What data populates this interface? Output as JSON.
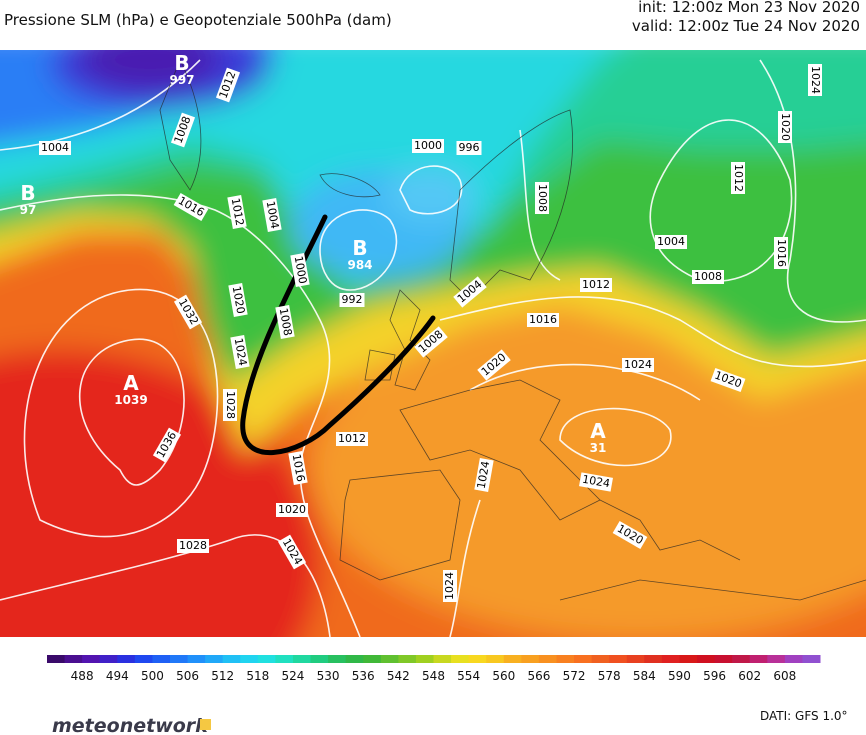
{
  "header": {
    "title": "Pressione SLM (hPa) e Geopotenziale 500hPa (dam)",
    "init": "init: 12:00z Mon 23 Nov 2020",
    "valid": "valid: 12:00z Tue 24 Nov 2020"
  },
  "centers": [
    {
      "letter": "B",
      "value": "997"
    },
    {
      "letter": "B",
      "value": "97"
    },
    {
      "letter": "B",
      "value": "984"
    },
    {
      "letter": "A",
      "value": "1039"
    },
    {
      "letter": "A",
      "value": "31"
    }
  ],
  "isobar_labels": [
    "1004",
    "1008",
    "1012",
    "1000",
    "996",
    "1016",
    "1012",
    "1004",
    "1008",
    "1012",
    "1020",
    "1024",
    "1016",
    "1004",
    "1008",
    "1012",
    "1000",
    "992",
    "1008",
    "1004",
    "1020",
    "1016",
    "1032",
    "1024",
    "1008",
    "1020",
    "1024",
    "1020",
    "1028",
    "1036",
    "1012",
    "1016",
    "1024",
    "1024",
    "1020",
    "1024",
    "1028",
    "1020",
    "1024"
  ],
  "colorbar": {
    "labels": [
      488,
      494,
      500,
      506,
      512,
      518,
      524,
      530,
      536,
      542,
      548,
      554,
      560,
      566,
      572,
      578,
      584,
      590,
      596,
      602,
      608
    ],
    "colors": [
      "#3a0a6a",
      "#4a0f90",
      "#5214b0",
      "#4020c8",
      "#2a30e0",
      "#1f48f0",
      "#1f60f5",
      "#2078f8",
      "#2090fa",
      "#20a8f8",
      "#20c0f5",
      "#20d4f0",
      "#20e0e0",
      "#20e0c0",
      "#20d8a0",
      "#20cc80",
      "#28c060",
      "#30b848",
      "#40b838",
      "#60c030",
      "#80c828",
      "#a0d020",
      "#c8d820",
      "#e8e020",
      "#f8d820",
      "#f8c820",
      "#f8b020",
      "#f8a020",
      "#f89020",
      "#f88020",
      "#f87020",
      "#f06020",
      "#f05020",
      "#e84020",
      "#e03020",
      "#e02020",
      "#d81818",
      "#d01020",
      "#c81030",
      "#c01848",
      "#c02070",
      "#b83098",
      "#a040c0",
      "#9050d0"
    ]
  },
  "footer": {
    "logo": "meteonetwork",
    "source": "DATI:  GFS 1.0°"
  }
}
